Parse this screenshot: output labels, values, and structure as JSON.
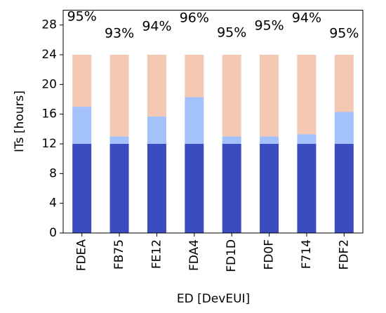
{
  "chart_data": {
    "type": "stacked_bar",
    "xlabel": "ED [DevEUI]",
    "ylabel": "ITs [hours]",
    "categories": [
      "FDEA",
      "FB75",
      "FE12",
      "FDA4",
      "FD1D",
      "FD0F",
      "F714",
      "FDF2"
    ],
    "series": [
      {
        "color": "#3b4cc0",
        "values": [
          12,
          12,
          12,
          12,
          12,
          12,
          12,
          12
        ]
      },
      {
        "color": "#a3c2fb",
        "values": [
          5,
          1,
          3.7,
          6.3,
          1,
          1,
          1.3,
          4.3
        ]
      },
      {
        "color": "#f4c8b2",
        "values": [
          7,
          11,
          8.3,
          5.7,
          11,
          11,
          10.7,
          7.7
        ]
      }
    ],
    "annotations": [
      "95%",
      "93%",
      "94%",
      "96%",
      "95%",
      "95%",
      "94%",
      "95%"
    ],
    "ylim": [
      0,
      30
    ],
    "yticks": [
      0,
      4,
      8,
      12,
      16,
      20,
      24,
      28
    ]
  }
}
